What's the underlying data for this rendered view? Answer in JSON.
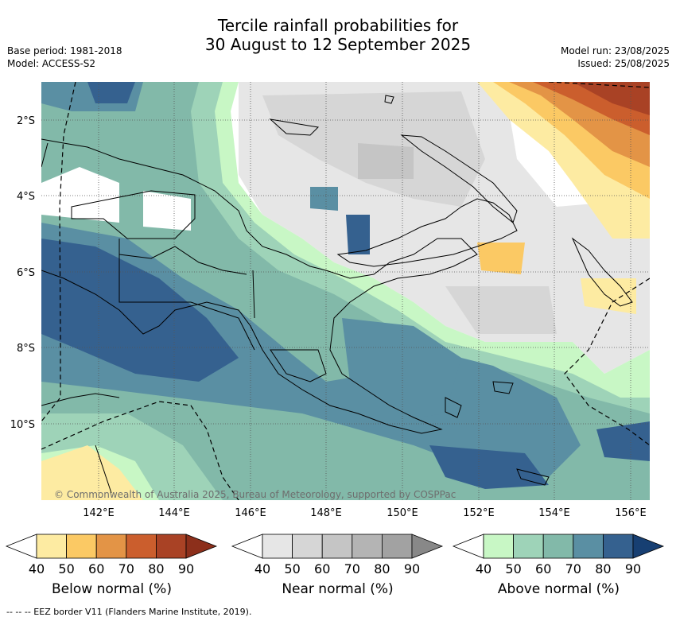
{
  "header": {
    "title_line1": "Tercile rainfall probabilities for",
    "title_line2": "30 August to 12 September 2025",
    "base_period": "Base period: 1981-2018",
    "model": "Model: ACCESS-S2",
    "model_run": "Model run: 23/08/2025",
    "issued": "Issued: 25/08/2025"
  },
  "map": {
    "lat_labels": [
      "2°S",
      "4°S",
      "6°S",
      "8°S",
      "10°S"
    ],
    "lon_labels": [
      "142°E",
      "144°E",
      "146°E",
      "148°E",
      "150°E",
      "152°E",
      "154°E",
      "156°E"
    ],
    "copyright": "© Commonwealth of Australia 2025, Bureau of Meteorology, supported by COSPPac"
  },
  "colorbars": [
    {
      "label": "Below normal (%)",
      "ticks": [
        "40",
        "50",
        "60",
        "70",
        "80",
        "90"
      ],
      "colors": [
        "#ffffff",
        "#fdeba2",
        "#fbc964",
        "#e39446",
        "#cb5e2d",
        "#a94225",
        "#8c2f1b"
      ]
    },
    {
      "label": "Near normal (%)",
      "ticks": [
        "40",
        "50",
        "60",
        "70",
        "80",
        "90"
      ],
      "colors": [
        "#ffffff",
        "#e6e6e6",
        "#d6d6d6",
        "#c5c5c5",
        "#b4b4b4",
        "#a2a2a2",
        "#888888"
      ]
    },
    {
      "label": "Above normal (%)",
      "ticks": [
        "40",
        "50",
        "60",
        "70",
        "80",
        "90"
      ],
      "colors": [
        "#ffffff",
        "#c8f7c5",
        "#9ed3b8",
        "#82b9a9",
        "#5a8fa3",
        "#35618f",
        "#173f72"
      ]
    }
  ],
  "footnote": "--  --  -- EEZ border V11 (Flanders Marine Institute, 2019)."
}
